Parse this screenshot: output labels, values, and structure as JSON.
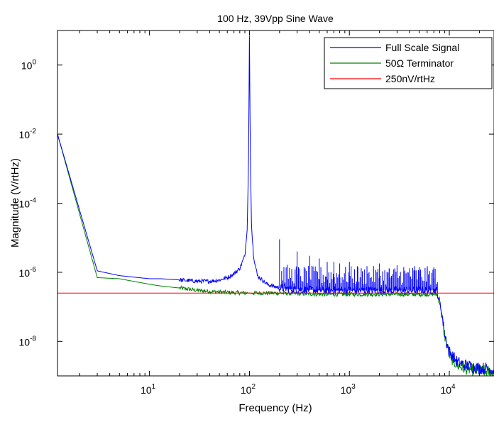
{
  "chart_data": {
    "type": "line",
    "title": "100 Hz, 39Vpp Sine Wave",
    "xlabel": "Frequency (Hz)",
    "ylabel": "Magnitude (V/rtHz)",
    "x_scale": "log",
    "y_scale": "log",
    "xlim": [
      1.2,
      28000
    ],
    "ylim": [
      1e-09,
      10
    ],
    "x_ticks": [
      {
        "value": 10,
        "base": "10",
        "exp": "1"
      },
      {
        "value": 100,
        "base": "10",
        "exp": "2"
      },
      {
        "value": 1000,
        "base": "10",
        "exp": "3"
      },
      {
        "value": 10000,
        "base": "10",
        "exp": "4"
      }
    ],
    "y_ticks": [
      {
        "value": 1,
        "base": "10",
        "exp": "0"
      },
      {
        "value": 0.01,
        "base": "10",
        "exp": "-2"
      },
      {
        "value": 0.0001,
        "base": "10",
        "exp": "-4"
      },
      {
        "value": 1e-06,
        "base": "10",
        "exp": "-6"
      },
      {
        "value": 1e-08,
        "base": "10",
        "exp": "-8"
      }
    ],
    "grid": false,
    "legend_position": "top-right",
    "series": [
      {
        "name": "Full Scale Signal",
        "color": "#0000ff",
        "x": [
          1.2,
          3.0,
          5,
          10,
          13,
          20,
          30,
          40,
          50,
          60,
          70,
          80,
          90,
          95,
          98,
          100,
          102,
          105,
          110,
          120,
          150,
          200,
          300,
          500,
          1000,
          2000,
          5000,
          7500,
          8200,
          9000,
          10000,
          12000,
          15000,
          20000,
          28000
        ],
        "y": [
          0.01,
          1.1e-06,
          8e-07,
          6.5e-07,
          6.5e-07,
          6e-07,
          5.5e-07,
          5.5e-07,
          6e-07,
          7e-07,
          9e-07,
          1.3e-06,
          3e-06,
          2e-05,
          0.002,
          7,
          0.002,
          2e-05,
          3e-06,
          8e-07,
          4.5e-07,
          3.5e-07,
          3.2e-07,
          3e-07,
          3e-07,
          3e-07,
          3e-07,
          3e-07,
          1e-07,
          1.5e-08,
          5e-09,
          2.5e-09,
          2e-09,
          1.7e-09,
          1.5e-09
        ],
        "spikes": {
          "x": [
            200,
            300,
            400,
            500,
            600,
            700,
            800,
            1000,
            1200,
            1500,
            2000,
            2500,
            3000,
            3500,
            4000,
            4500,
            5000,
            6000,
            7000
          ],
          "y": [
            9e-06,
            4e-06,
            3e-06,
            2.5e-06,
            2e-06,
            2e-06,
            1.8e-06,
            2e-06,
            1.5e-06,
            1.5e-06,
            1.8e-06,
            1.3e-06,
            1.6e-06,
            1.4e-06,
            1.3e-06,
            1.5e-06,
            1.4e-06,
            1.3e-06,
            1.4e-06
          ]
        }
      },
      {
        "name": "50Ω Terminator",
        "color": "#008000",
        "x": [
          1.2,
          3.0,
          5,
          10,
          13,
          20,
          30,
          40,
          60,
          100,
          200,
          500,
          1000,
          3000,
          7500,
          8200,
          9000,
          10000,
          12000,
          15000,
          20000,
          28000
        ],
        "y": [
          0.01,
          7e-07,
          6.5e-07,
          4.5e-07,
          4e-07,
          3.5e-07,
          3e-07,
          2.8e-07,
          2.6e-07,
          2.5e-07,
          2.5e-07,
          2.3e-07,
          2.3e-07,
          2.3e-07,
          2.3e-07,
          1e-07,
          1.5e-08,
          4e-09,
          2e-09,
          1.6e-09,
          1.4e-09,
          1.3e-09
        ]
      },
      {
        "name": "250nV/rtHz",
        "color": "#ff0000",
        "x": [
          1.2,
          28000
        ],
        "y": [
          2.5e-07,
          2.5e-07
        ]
      }
    ]
  }
}
